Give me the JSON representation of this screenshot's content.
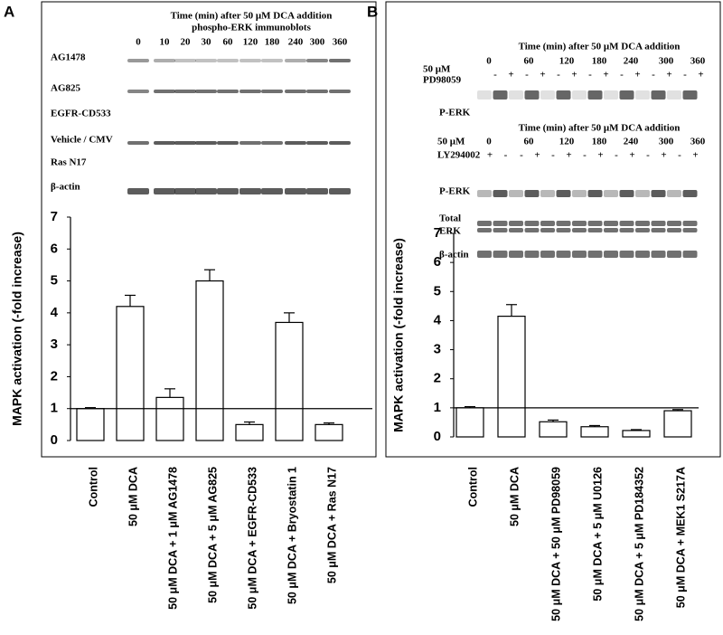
{
  "blots": [
    {
      "label": "A",
      "title": "Time (min) after 50 μM DCA addition",
      "subtitle": "phospho-ERK immunoblots",
      "times": [
        "0",
        "10",
        "20",
        "30",
        "60",
        "120",
        "180",
        "240",
        "300",
        "360"
      ],
      "rows": [
        "AG1478",
        "AG825",
        "EGFR-CD533",
        "Vehicle / CMV",
        "Ras N17",
        "β-actin"
      ]
    },
    {
      "label": "B",
      "sections": [
        {
          "title": "Time (min) after 50 μM DCA addition",
          "times": [
            "0",
            "60",
            "120",
            "180",
            "240",
            "300",
            "360"
          ],
          "treatment": [
            "50 μM",
            "PD98059"
          ],
          "signs": [
            "-",
            "+",
            "-",
            "+",
            "-",
            "+",
            "-",
            "+",
            "-",
            "+",
            "-",
            "+",
            "-",
            "+"
          ],
          "rows": [
            [
              "P-ERK"
            ]
          ]
        },
        {
          "title": "Time (min) after 50 μM DCA addition",
          "times": [
            "0",
            "60",
            "120",
            "180",
            "240",
            "300",
            "360"
          ],
          "treatment": [
            "50 μM",
            "LY294002"
          ],
          "signs": [
            "+",
            "-",
            "-",
            "+",
            "-",
            "+",
            "-",
            "+",
            "-",
            "+",
            "-",
            "+",
            "-",
            "+"
          ],
          "rows": [
            [
              "P-ERK"
            ],
            [
              "Total",
              "ERK"
            ],
            [
              "β-actin"
            ]
          ]
        }
      ]
    }
  ],
  "chart_data": [
    {
      "type": "bar",
      "y_label": "MAPK activation (-fold increase)",
      "categories": [
        "Control",
        "50 μM DCA",
        "50 μM DCA + 1 μM AG1478",
        "50 μM DCA + 5 μM AG825",
        "50 μM DCA + EGFR-CD533",
        "50 μM DCA + Bryostatin 1",
        "50 μM DCA + Ras N17"
      ],
      "values": [
        1.0,
        4.2,
        1.35,
        5.0,
        0.5,
        3.7,
        0.5
      ],
      "errors": [
        0.03,
        0.35,
        0.27,
        0.35,
        0.08,
        0.3,
        0.05
      ],
      "color": "#ffffff",
      "reference_line": 1,
      "ylim": [
        0,
        7
      ],
      "yticks": [
        0,
        1,
        2,
        3,
        4,
        5,
        6,
        7
      ]
    },
    {
      "type": "bar",
      "y_label": "MAPK activation (-fold increase)",
      "categories": [
        "Control",
        "50 μM DCA",
        "50 μM DCA + 50 μM PD98059",
        "50 μM DCA + 5 μM U0126",
        "50 μM DCA + 5 μM PD184352",
        "50 μM DCA + MEK1 S217A"
      ],
      "values": [
        1.0,
        4.15,
        0.52,
        0.35,
        0.22,
        0.9
      ],
      "errors": [
        0.04,
        0.4,
        0.06,
        0.04,
        0.03,
        0.04
      ],
      "color": "#ffffff",
      "reference_line": 1,
      "ylim": [
        0,
        7
      ],
      "yticks": [
        0,
        1,
        2,
        3,
        4,
        5,
        6,
        7
      ]
    }
  ]
}
